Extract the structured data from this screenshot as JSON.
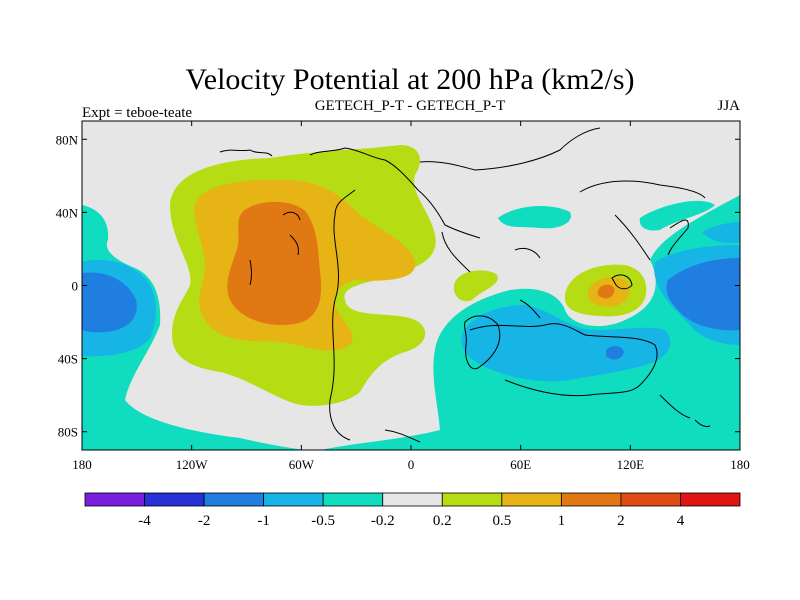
{
  "chart_data": {
    "type": "heatmap",
    "title": "Velocity Potential at 200 hPa (km2/s)",
    "left_label": "Expt = teboe-teate",
    "center_label": "GETECH_P-T - GETECH_P-T",
    "right_label": "JJA",
    "xlim": [
      -180,
      180
    ],
    "ylim": [
      -90,
      90
    ],
    "x_ticks": [
      {
        "value": -180,
        "label": "180"
      },
      {
        "value": -120,
        "label": "120W"
      },
      {
        "value": -60,
        "label": "60W"
      },
      {
        "value": 0,
        "label": "0"
      },
      {
        "value": 60,
        "label": "60E"
      },
      {
        "value": 120,
        "label": "120E"
      },
      {
        "value": 180,
        "label": "180"
      }
    ],
    "y_ticks": [
      {
        "value": 80,
        "label": "80N"
      },
      {
        "value": 40,
        "label": "40N"
      },
      {
        "value": 0,
        "label": "0"
      },
      {
        "value": -40,
        "label": "40S"
      },
      {
        "value": -80,
        "label": "80S"
      }
    ],
    "colorbar": {
      "colors": [
        "#7a1ee0",
        "#2830d8",
        "#1f7ee0",
        "#17b4e6",
        "#10dcc0",
        "#e6e6e6",
        "#b6dc14",
        "#e6b414",
        "#e07814",
        "#e04a14",
        "#e01414"
      ],
      "boundaries": [
        "-4",
        "-2",
        "-1",
        "-0.5",
        "-0.2",
        "0.2",
        "0.5",
        "1",
        "2",
        "4"
      ]
    },
    "background_level": "#e6e6e6",
    "anomaly_centers": [
      {
        "region": "South America / eastern Pacific",
        "lon": -78,
        "lat": 10,
        "level": "1 to 2",
        "color": "#e07814"
      },
      {
        "region": "Maritime continent",
        "lon": 110,
        "lat": 0,
        "level": "1 to 2",
        "color": "#e07814"
      },
      {
        "region": "Central Pacific",
        "lon": 165,
        "lat": 0,
        "level": "-1 to -0.5",
        "color": "#17b4e6"
      },
      {
        "region": "Western Pacific",
        "lon": -165,
        "lat": -10,
        "level": "-1 to -0.5",
        "color": "#17b4e6"
      },
      {
        "region": "Southern Indian Ocean",
        "lon": 75,
        "lat": -30,
        "level": "-1 to -0.5",
        "color": "#17b4e6"
      }
    ]
  }
}
